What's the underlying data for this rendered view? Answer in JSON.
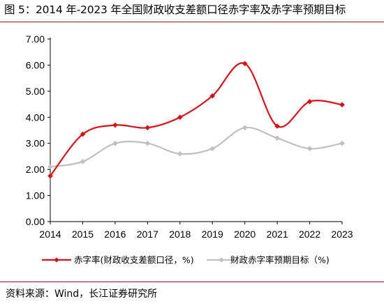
{
  "title": "图 5：2014 年-2023 年全国财政收支差额口径赤字率及赤字率预期目标",
  "source": "资料来源：Wind，长江证券研究所",
  "chart_data": {
    "type": "line",
    "x": [
      "2014",
      "2015",
      "2016",
      "2017",
      "2018",
      "2019",
      "2020",
      "2021",
      "2022",
      "2023"
    ],
    "ylim": [
      0,
      7
    ],
    "yticks": [
      "0.00",
      "1.00",
      "2.00",
      "3.00",
      "4.00",
      "5.00",
      "6.00",
      "7.00"
    ],
    "grid": false,
    "legend_position": "bottom",
    "series": [
      {
        "name": "赤字率(财政收支差额口径，%)",
        "color": "#d0141c",
        "marker": "diamond",
        "values": [
          1.75,
          3.35,
          3.7,
          3.6,
          4.0,
          4.82,
          6.06,
          3.66,
          4.6,
          4.48
        ]
      },
      {
        "name": "财政赤字率预期目标（%)",
        "color": "#c0c0c0",
        "marker": "diamond",
        "values": [
          2.1,
          2.3,
          3.0,
          3.0,
          2.6,
          2.8,
          3.6,
          3.2,
          2.8,
          3.0
        ]
      }
    ]
  }
}
